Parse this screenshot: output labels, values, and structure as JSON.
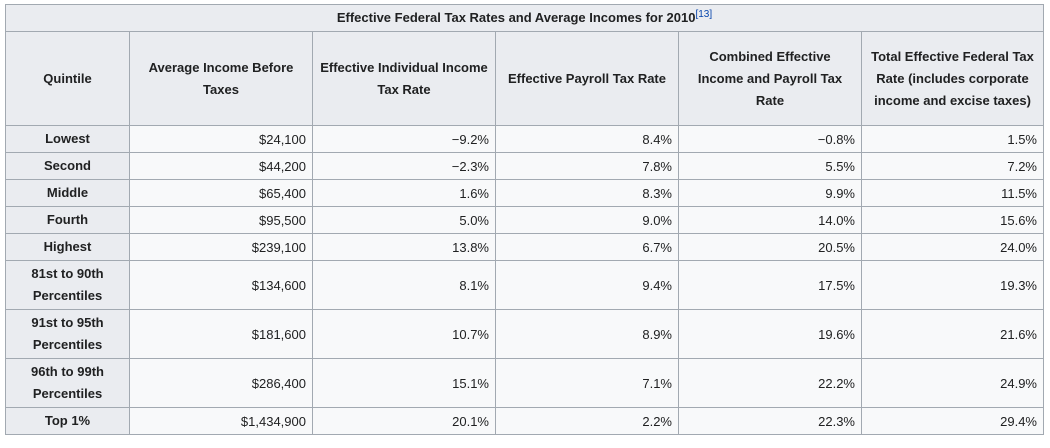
{
  "table": {
    "caption": "Effective Federal Tax Rates and Average Incomes for 2010",
    "citation": "[13]",
    "columns": [
      "Quintile",
      "Average Income Before Taxes",
      "Effective Individual Income Tax Rate",
      "Effective Payroll Tax Rate",
      "Combined Effective Income and Payroll Tax Rate",
      "Total Effective Federal Tax Rate (includes corporate income and excise taxes)"
    ],
    "quintile_rows": [
      {
        "label": "Lowest",
        "income": "$24,100",
        "individual": "−9.2%",
        "payroll": "8.4%",
        "combined": "−0.8%",
        "total": "1.5%"
      },
      {
        "label": "Second",
        "income": "$44,200",
        "individual": "−2.3%",
        "payroll": "7.8%",
        "combined": "5.5%",
        "total": "7.2%"
      },
      {
        "label": "Middle",
        "income": "$65,400",
        "individual": "1.6%",
        "payroll": "8.3%",
        "combined": "9.9%",
        "total": "11.5%"
      },
      {
        "label": "Fourth",
        "income": "$95,500",
        "individual": "5.0%",
        "payroll": "9.0%",
        "combined": "14.0%",
        "total": "15.6%"
      },
      {
        "label": "Highest",
        "income": "$239,100",
        "individual": "13.8%",
        "payroll": "6.7%",
        "combined": "20.5%",
        "total": "24.0%"
      }
    ],
    "percentile_rows": [
      {
        "label": "81st to 90th Percentiles",
        "income": "$134,600",
        "individual": "8.1%",
        "payroll": "9.4%",
        "combined": "17.5%",
        "total": "19.3%"
      },
      {
        "label": "91st to 95th Percentiles",
        "income": "$181,600",
        "individual": "10.7%",
        "payroll": "8.9%",
        "combined": "19.6%",
        "total": "21.6%"
      },
      {
        "label": "96th to 99th Percentiles",
        "income": "$286,400",
        "individual": "15.1%",
        "payroll": "7.1%",
        "combined": "22.2%",
        "total": "24.9%"
      },
      {
        "label": "Top 1%",
        "income": "$1,434,900",
        "individual": "20.1%",
        "payroll": "2.2%",
        "combined": "22.3%",
        "total": "29.4%"
      }
    ]
  }
}
